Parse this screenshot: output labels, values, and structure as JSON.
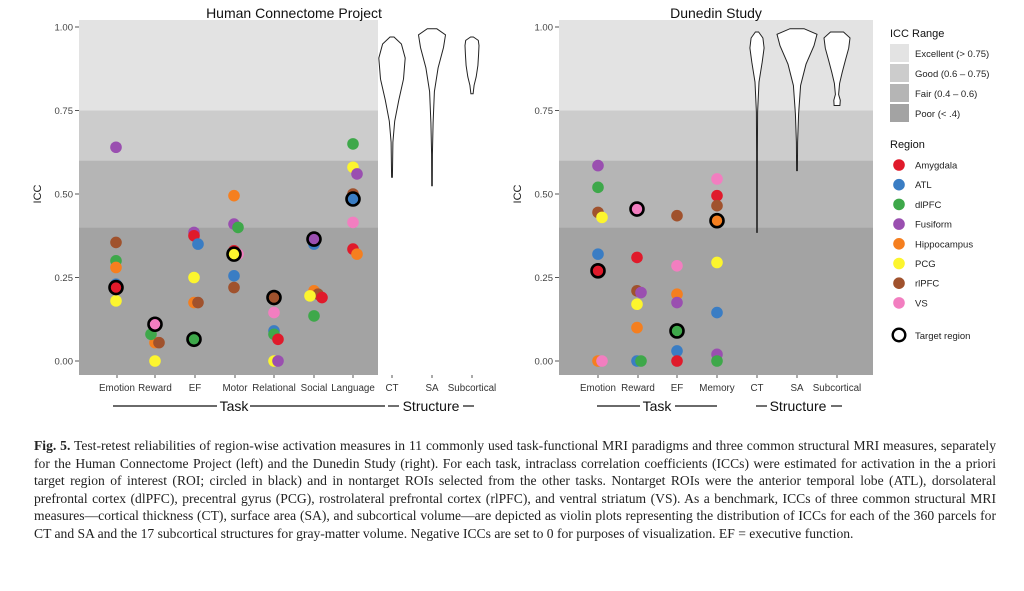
{
  "colors": {
    "Amygdala": "#e01a2b",
    "ATL": "#3a7dc4",
    "dlPFC": "#3ea84a",
    "Fusiform": "#9a4fb0",
    "Hippocampus": "#f57f1f",
    "PCG": "#fcf52e",
    "rlPFC": "#a0522d",
    "VS": "#f27ec0",
    "band_excellent": "#e3e3e3",
    "band_good": "#cccccc",
    "band_fair": "#b5b5b5",
    "band_poor": "#a3a3a3"
  },
  "legend": {
    "icc_title": "ICC Range",
    "icc_items": [
      "Excellent (> 0.75)",
      "Good (0.6 – 0.75)",
      "Fair (0.4 – 0.6)",
      "Poor (< .4)"
    ],
    "region_title": "Region",
    "regions": [
      "Amygdala",
      "ATL",
      "dlPFC",
      "Fusiform",
      "Hippocampus",
      "PCG",
      "rlPFC",
      "VS"
    ],
    "target_label": "Target region"
  },
  "chart_data": [
    {
      "type": "scatter",
      "title": "Human Connectome Project",
      "ylabel": "ICC",
      "ylim": [
        0,
        1
      ],
      "yticks": [
        "0.00",
        "0.25",
        "0.50",
        "0.75",
        "1.00"
      ],
      "categories": [
        "Emotion",
        "Reward",
        "EF",
        "Motor",
        "Relational",
        "Social",
        "Language",
        "CT",
        "SA",
        "Subcortical"
      ],
      "group_labels": [
        "Task",
        "Structure"
      ],
      "points": [
        {
          "x": "Emotion",
          "region": "Fusiform",
          "y": 0.64
        },
        {
          "x": "Emotion",
          "region": "rlPFC",
          "y": 0.355
        },
        {
          "x": "Emotion",
          "region": "dlPFC",
          "y": 0.3
        },
        {
          "x": "Emotion",
          "region": "Hippocampus",
          "y": 0.28
        },
        {
          "x": "Emotion",
          "region": "ATL",
          "y": 0.23
        },
        {
          "x": "Emotion",
          "region": "PCG",
          "y": 0.18
        },
        {
          "x": "Emotion",
          "region": "Amygdala",
          "y": 0.22,
          "target": true
        },
        {
          "x": "Reward",
          "region": "Hippocampus",
          "y": 0.055
        },
        {
          "x": "Reward",
          "region": "rlPFC",
          "y": 0.055
        },
        {
          "x": "Reward",
          "region": "PCG",
          "y": 0.0
        },
        {
          "x": "Reward",
          "region": "dlPFC",
          "y": 0.08
        },
        {
          "x": "Reward",
          "region": "VS",
          "y": 0.11,
          "target": true
        },
        {
          "x": "EF",
          "region": "Fusiform",
          "y": 0.385
        },
        {
          "x": "EF",
          "region": "Amygdala",
          "y": 0.375
        },
        {
          "x": "EF",
          "region": "ATL",
          "y": 0.35
        },
        {
          "x": "EF",
          "region": "PCG",
          "y": 0.25
        },
        {
          "x": "EF",
          "region": "Hippocampus",
          "y": 0.175
        },
        {
          "x": "EF",
          "region": "rlPFC",
          "y": 0.175
        },
        {
          "x": "EF",
          "region": "VS",
          "y": 0.065
        },
        {
          "x": "EF",
          "region": "dlPFC",
          "y": 0.065,
          "target": true
        },
        {
          "x": "Motor",
          "region": "Hippocampus",
          "y": 0.495
        },
        {
          "x": "Motor",
          "region": "Fusiform",
          "y": 0.41
        },
        {
          "x": "Motor",
          "region": "dlPFC",
          "y": 0.4
        },
        {
          "x": "Motor",
          "region": "Amygdala",
          "y": 0.33
        },
        {
          "x": "Motor",
          "region": "VS",
          "y": 0.32
        },
        {
          "x": "Motor",
          "region": "ATL",
          "y": 0.255
        },
        {
          "x": "Motor",
          "region": "rlPFC",
          "y": 0.22
        },
        {
          "x": "Motor",
          "region": "PCG",
          "y": 0.32,
          "target": true
        },
        {
          "x": "Relational",
          "region": "VS",
          "y": 0.145
        },
        {
          "x": "Relational",
          "region": "ATL",
          "y": 0.09
        },
        {
          "x": "Relational",
          "region": "dlPFC",
          "y": 0.08
        },
        {
          "x": "Relational",
          "region": "Amygdala",
          "y": 0.065
        },
        {
          "x": "Relational",
          "region": "PCG",
          "y": 0.0
        },
        {
          "x": "Relational",
          "region": "Fusiform",
          "y": 0.0
        },
        {
          "x": "Relational",
          "region": "rlPFC",
          "y": 0.19,
          "target": true
        },
        {
          "x": "Social",
          "region": "ATL",
          "y": 0.35
        },
        {
          "x": "Social",
          "region": "Hippocampus",
          "y": 0.21
        },
        {
          "x": "Social",
          "region": "rlPFC",
          "y": 0.2
        },
        {
          "x": "Social",
          "region": "PCG",
          "y": 0.195
        },
        {
          "x": "Social",
          "region": "Amygdala",
          "y": 0.19
        },
        {
          "x": "Social",
          "region": "dlPFC",
          "y": 0.135
        },
        {
          "x": "Social",
          "region": "Fusiform",
          "y": 0.365,
          "target": true
        },
        {
          "x": "Language",
          "region": "dlPFC",
          "y": 0.65
        },
        {
          "x": "Language",
          "region": "PCG",
          "y": 0.58
        },
        {
          "x": "Language",
          "region": "Fusiform",
          "y": 0.56
        },
        {
          "x": "Language",
          "region": "rlPFC",
          "y": 0.5
        },
        {
          "x": "Language",
          "region": "VS",
          "y": 0.415
        },
        {
          "x": "Language",
          "region": "Amygdala",
          "y": 0.335
        },
        {
          "x": "Language",
          "region": "Hippocampus",
          "y": 0.32
        },
        {
          "x": "Language",
          "region": "ATL",
          "y": 0.485,
          "target": true
        }
      ],
      "violins": [
        {
          "x": "CT",
          "min": 0.55,
          "max": 0.97
        },
        {
          "x": "SA",
          "min": 0.525,
          "max": 0.995
        },
        {
          "x": "Subcortical",
          "min": 0.8,
          "max": 0.97
        }
      ]
    },
    {
      "type": "scatter",
      "title": "Dunedin Study",
      "ylabel": "ICC",
      "ylim": [
        0,
        1
      ],
      "yticks": [
        "0.00",
        "0.25",
        "0.50",
        "0.75",
        "1.00"
      ],
      "categories": [
        "Emotion",
        "Reward",
        "EF",
        "Memory",
        "CT",
        "SA",
        "Subcortical"
      ],
      "group_labels": [
        "Task",
        "Structure"
      ],
      "points": [
        {
          "x": "Emotion",
          "region": "Fusiform",
          "y": 0.585
        },
        {
          "x": "Emotion",
          "region": "dlPFC",
          "y": 0.52
        },
        {
          "x": "Emotion",
          "region": "rlPFC",
          "y": 0.445
        },
        {
          "x": "Emotion",
          "region": "PCG",
          "y": 0.43
        },
        {
          "x": "Emotion",
          "region": "ATL",
          "y": 0.32
        },
        {
          "x": "Emotion",
          "region": "Hippocampus",
          "y": 0.0
        },
        {
          "x": "Emotion",
          "region": "VS",
          "y": 0.0
        },
        {
          "x": "Emotion",
          "region": "Amygdala",
          "y": 0.27,
          "target": true
        },
        {
          "x": "Reward",
          "region": "Amygdala",
          "y": 0.31
        },
        {
          "x": "Reward",
          "region": "rlPFC",
          "y": 0.21
        },
        {
          "x": "Reward",
          "region": "Fusiform",
          "y": 0.205
        },
        {
          "x": "Reward",
          "region": "PCG",
          "y": 0.17
        },
        {
          "x": "Reward",
          "region": "Hippocampus",
          "y": 0.1
        },
        {
          "x": "Reward",
          "region": "ATL",
          "y": 0.0
        },
        {
          "x": "Reward",
          "region": "dlPFC",
          "y": 0.0
        },
        {
          "x": "Reward",
          "region": "VS",
          "y": 0.455,
          "target": true
        },
        {
          "x": "EF",
          "region": "rlPFC",
          "y": 0.435
        },
        {
          "x": "EF",
          "region": "VS",
          "y": 0.285
        },
        {
          "x": "EF",
          "region": "Hippocampus",
          "y": 0.2
        },
        {
          "x": "EF",
          "region": "Fusiform",
          "y": 0.175
        },
        {
          "x": "EF",
          "region": "ATL",
          "y": 0.03
        },
        {
          "x": "EF",
          "region": "Amygdala",
          "y": 0.0
        },
        {
          "x": "EF",
          "region": "dlPFC",
          "y": 0.09,
          "target": true
        },
        {
          "x": "Memory",
          "region": "VS",
          "y": 0.545
        },
        {
          "x": "Memory",
          "region": "Amygdala",
          "y": 0.495
        },
        {
          "x": "Memory",
          "region": "rlPFC",
          "y": 0.465
        },
        {
          "x": "Memory",
          "region": "PCG",
          "y": 0.295
        },
        {
          "x": "Memory",
          "region": "ATL",
          "y": 0.145
        },
        {
          "x": "Memory",
          "region": "Fusiform",
          "y": 0.02
        },
        {
          "x": "Memory",
          "region": "dlPFC",
          "y": 0.0
        },
        {
          "x": "Memory",
          "region": "Hippocampus",
          "y": 0.42,
          "target": true
        }
      ],
      "violins": [
        {
          "x": "CT",
          "min": 0.385,
          "max": 0.985
        },
        {
          "x": "SA",
          "min": 0.57,
          "max": 0.995
        },
        {
          "x": "Subcortical",
          "min": 0.765,
          "max": 0.985
        }
      ]
    }
  ],
  "caption": {
    "label": "Fig. 5.",
    "text": " Test-retest reliabilities of region-wise activation measures in 11 commonly used task-functional MRI paradigms and three common structural MRI measures, separately for the Human Connectome Project (left) and the Dunedin Study (right). For each task, intraclass correlation coefficients (ICCs) were estimated for activation in the a priori target region of interest (ROI; circled in black) and in nontarget ROIs selected from the other tasks. Nontarget ROIs were the anterior temporal lobe (ATL), dorsolateral prefrontal cortex (dlPFC), precentral gyrus (PCG), rostrolateral prefrontal cortex (rlPFC), and ventral striatum (VS). As a benchmark, ICCs of three common structural MRI measures—cortical thickness (CT), surface area (SA), and subcortical volume—are depicted as violin plots representing the distribution of ICCs for each of the 360 parcels for CT and SA and the 17 subcortical structures for gray-matter volume. Negative ICCs are set to 0 for purposes of visualization. EF = executive function."
  }
}
